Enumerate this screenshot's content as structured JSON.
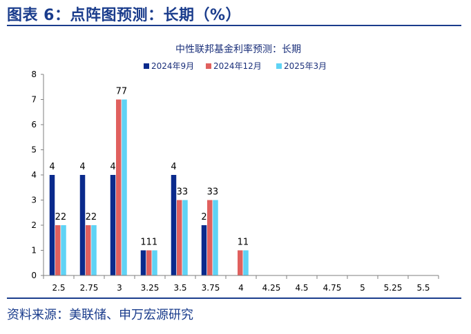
{
  "figure_title": "图表 6：点阵图预测：长期（%）",
  "source_text": "资料来源：美联储、申万宏源研究",
  "colors": {
    "series1": "#0a2a8c",
    "series2": "#e0605e",
    "series3": "#5fd3f5",
    "brand": "#1a3c8c"
  },
  "chart_data": {
    "type": "bar",
    "title": "中性联邦基金利率预测：长期",
    "xlabel": "",
    "ylabel": "",
    "ylim": [
      0,
      8
    ],
    "yticks": [
      "0",
      "1",
      "2",
      "3",
      "4",
      "5",
      "6",
      "7",
      "8"
    ],
    "categories": [
      "2.5",
      "2.75",
      "3",
      "3.25",
      "3.5",
      "3.75",
      "4",
      "4.25",
      "4.5",
      "4.75",
      "5",
      "5.25",
      "5.5"
    ],
    "legend_position": "top",
    "series": [
      {
        "name": "2024年9月",
        "values": [
          4,
          4,
          4,
          1,
          4,
          2,
          0,
          0,
          0,
          0,
          0,
          0,
          0
        ]
      },
      {
        "name": "2024年12月",
        "values": [
          2,
          2,
          7,
          1,
          3,
          3,
          1,
          0,
          0,
          0,
          0,
          0,
          0
        ]
      },
      {
        "name": "2025年3月",
        "values": [
          2,
          2,
          7,
          1,
          3,
          3,
          1,
          0,
          0,
          0,
          0,
          0,
          0
        ]
      }
    ]
  }
}
